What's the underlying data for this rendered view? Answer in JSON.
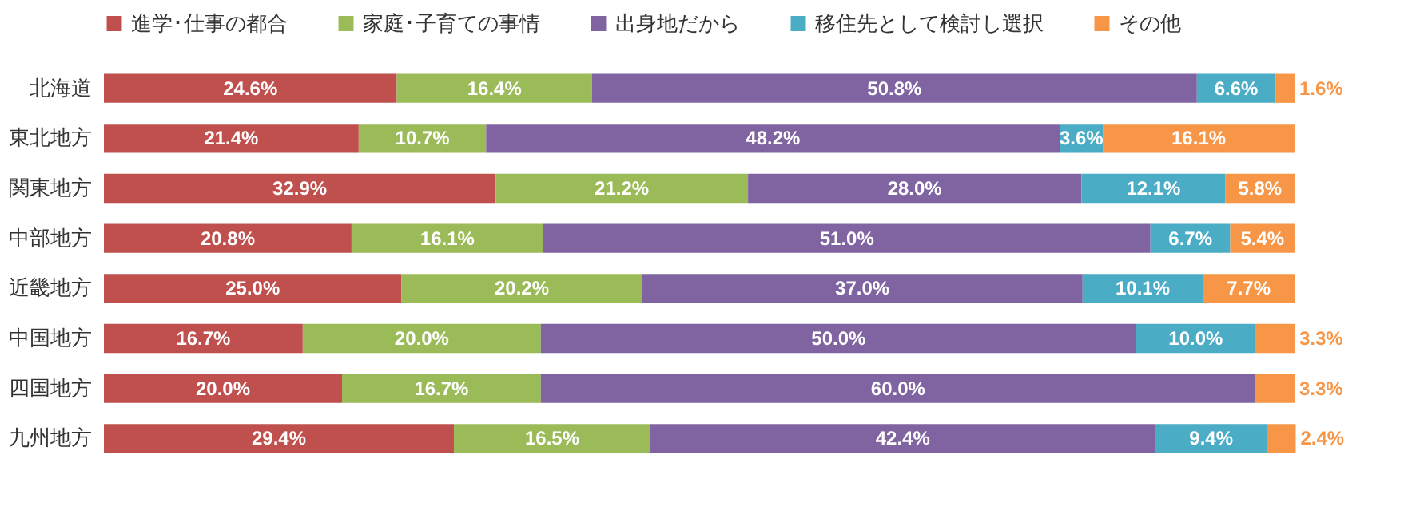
{
  "chart_data": {
    "type": "bar",
    "orientation": "horizontal",
    "stacked": true,
    "legend": "top",
    "categories": [
      "北海道",
      "東北地方",
      "関東地方",
      "中部地方",
      "近畿地方",
      "中国地方",
      "四国地方",
      "九州地方"
    ],
    "xlim": [
      0,
      100
    ],
    "tick_labels": "y",
    "series": [
      {
        "name": "進学･仕事の都合",
        "color": "#c0504d",
        "values": [
          24.6,
          21.4,
          32.9,
          20.8,
          25.0,
          16.7,
          20.0,
          29.4
        ],
        "value_labels": [
          "24.6%",
          "21.4%",
          "32.9%",
          "20.8%",
          "25.0%",
          "16.7%",
          "20.0%",
          "29.4%"
        ]
      },
      {
        "name": "家庭･子育ての事情",
        "color": "#9bbb59",
        "values": [
          16.4,
          10.7,
          21.2,
          16.1,
          20.2,
          20.0,
          16.7,
          16.5
        ],
        "value_labels": [
          "16.4%",
          "10.7%",
          "21.2%",
          "16.1%",
          "20.2%",
          "20.0%",
          "16.7%",
          "16.5%"
        ]
      },
      {
        "name": "出身地だから",
        "color": "#8064a2",
        "values": [
          50.8,
          48.2,
          28.0,
          51.0,
          37.0,
          50.0,
          60.0,
          42.4
        ],
        "value_labels": [
          "50.8%",
          "48.2%",
          "28.0%",
          "51.0%",
          "37.0%",
          "50.0%",
          "60.0%",
          "42.4%"
        ]
      },
      {
        "name": "移住先として検討し選択",
        "color": "#4bacc6",
        "values": [
          6.6,
          3.6,
          12.1,
          6.7,
          10.1,
          10.0,
          0,
          9.4
        ],
        "value_labels": [
          "6.6%",
          "3.6%",
          "12.1%",
          "6.7%",
          "10.1%",
          "10.0%",
          null,
          "9.4%"
        ]
      },
      {
        "name": "その他",
        "color": "#f79646",
        "values": [
          1.6,
          16.1,
          5.8,
          5.4,
          7.7,
          3.3,
          3.3,
          2.4
        ],
        "value_labels": [
          "1.6%",
          "16.1%",
          "5.8%",
          "5.4%",
          "7.7%",
          "3.3%",
          "3.3%",
          "2.4%"
        ]
      }
    ]
  }
}
